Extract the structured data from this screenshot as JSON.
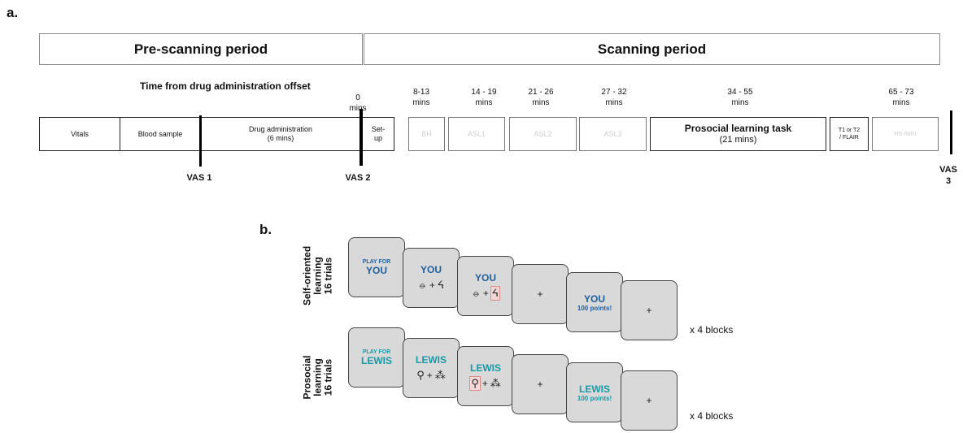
{
  "panel_a": {
    "label": "a.",
    "pre_period": "Pre-scanning period",
    "scan_period": "Scanning period",
    "time_header": "Time  from drug administration offset",
    "ticks": [
      {
        "l1": "0",
        "l2": "mins"
      },
      {
        "l1": "8-13",
        "l2": "mins"
      },
      {
        "l1": "14 - 19",
        "l2": "mins"
      },
      {
        "l1": "21 - 26",
        "l2": "mins"
      },
      {
        "l1": "27 - 32",
        "l2": "mins"
      },
      {
        "l1": "34 - 55",
        "l2": "mins"
      },
      {
        "l1": "65 - 73",
        "l2": "mins"
      }
    ],
    "boxes": [
      {
        "l1": "Vitals",
        "l2": ""
      },
      {
        "l1": "Blood sample",
        "l2": ""
      },
      {
        "l1": "Drug administration",
        "l2": "(6 mins)"
      },
      {
        "l1": "Set-",
        "l2": "up"
      },
      {
        "l1": "BH",
        "l2": ""
      },
      {
        "l1": "ASL1",
        "l2": ""
      },
      {
        "l1": "ASL2",
        "l2": ""
      },
      {
        "l1": "ASL3",
        "l2": ""
      },
      {
        "l1": "Prosocial learning task",
        "l2": "(21 mins)"
      },
      {
        "l1": "T1 or T2",
        "l2": "/ FLAIR"
      },
      {
        "l1": "RS-fMRI",
        "l2": ""
      }
    ],
    "vas": [
      {
        "l1": "VAS 1",
        "l2": ""
      },
      {
        "l1": "VAS 2",
        "l2": ""
      },
      {
        "l1": "VAS",
        "l2": "3"
      }
    ]
  },
  "panel_b": {
    "label": "b.",
    "rows": [
      {
        "label_lines": [
          "Self-oriented",
          "learning",
          "16 trials"
        ],
        "play_for": "PLAY FOR",
        "name": "YOU",
        "points": "100 points!",
        "glyph_left": "⦵",
        "glyph_right": "ᔦ",
        "blocks": "x 4 blocks"
      },
      {
        "label_lines": [
          "Prosocial",
          "learning",
          "16 trials"
        ],
        "play_for": "PLAY FOR",
        "name": "LEWIS",
        "points": "100 points!",
        "glyph_left": "⚲",
        "glyph_right": "⁂",
        "blocks": "x 4 blocks"
      }
    ],
    "plus": "+"
  },
  "colors": {
    "self": "#1f5fa0",
    "prosocial": "#1a9aa6",
    "selection": "#e08a8a"
  }
}
